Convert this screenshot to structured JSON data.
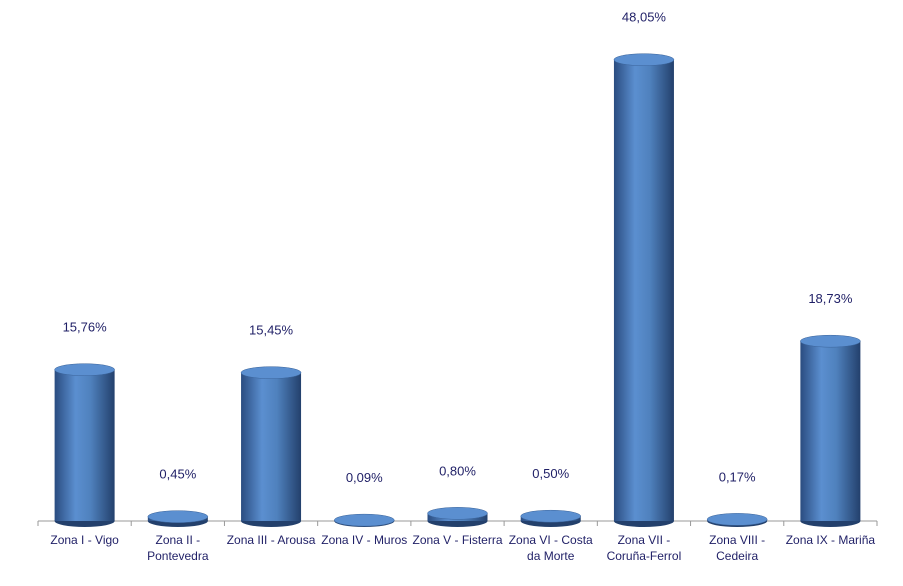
{
  "chart_data": {
    "type": "bar",
    "categories": [
      "Zona I - Vigo",
      "Zona II - Pontevedra",
      "Zona III - Arousa",
      "Zona IV - Muros",
      "Zona V - Fisterra",
      "Zona VI - Costa da Morte",
      "Zona VII - Coruña-Ferrol",
      "Zona VIII - Cedeira",
      "Zona IX - Mariña"
    ],
    "values": [
      15.76,
      0.45,
      15.45,
      0.09,
      0.8,
      0.5,
      48.05,
      0.17,
      18.73
    ],
    "value_labels": [
      "15,76%",
      "0,45%",
      "15,45%",
      "0,09%",
      "0,80%",
      "0,50%",
      "48,05%",
      "0,17%",
      "18,73%"
    ],
    "color": "#4f81bd",
    "ylim": [
      0,
      50
    ]
  }
}
